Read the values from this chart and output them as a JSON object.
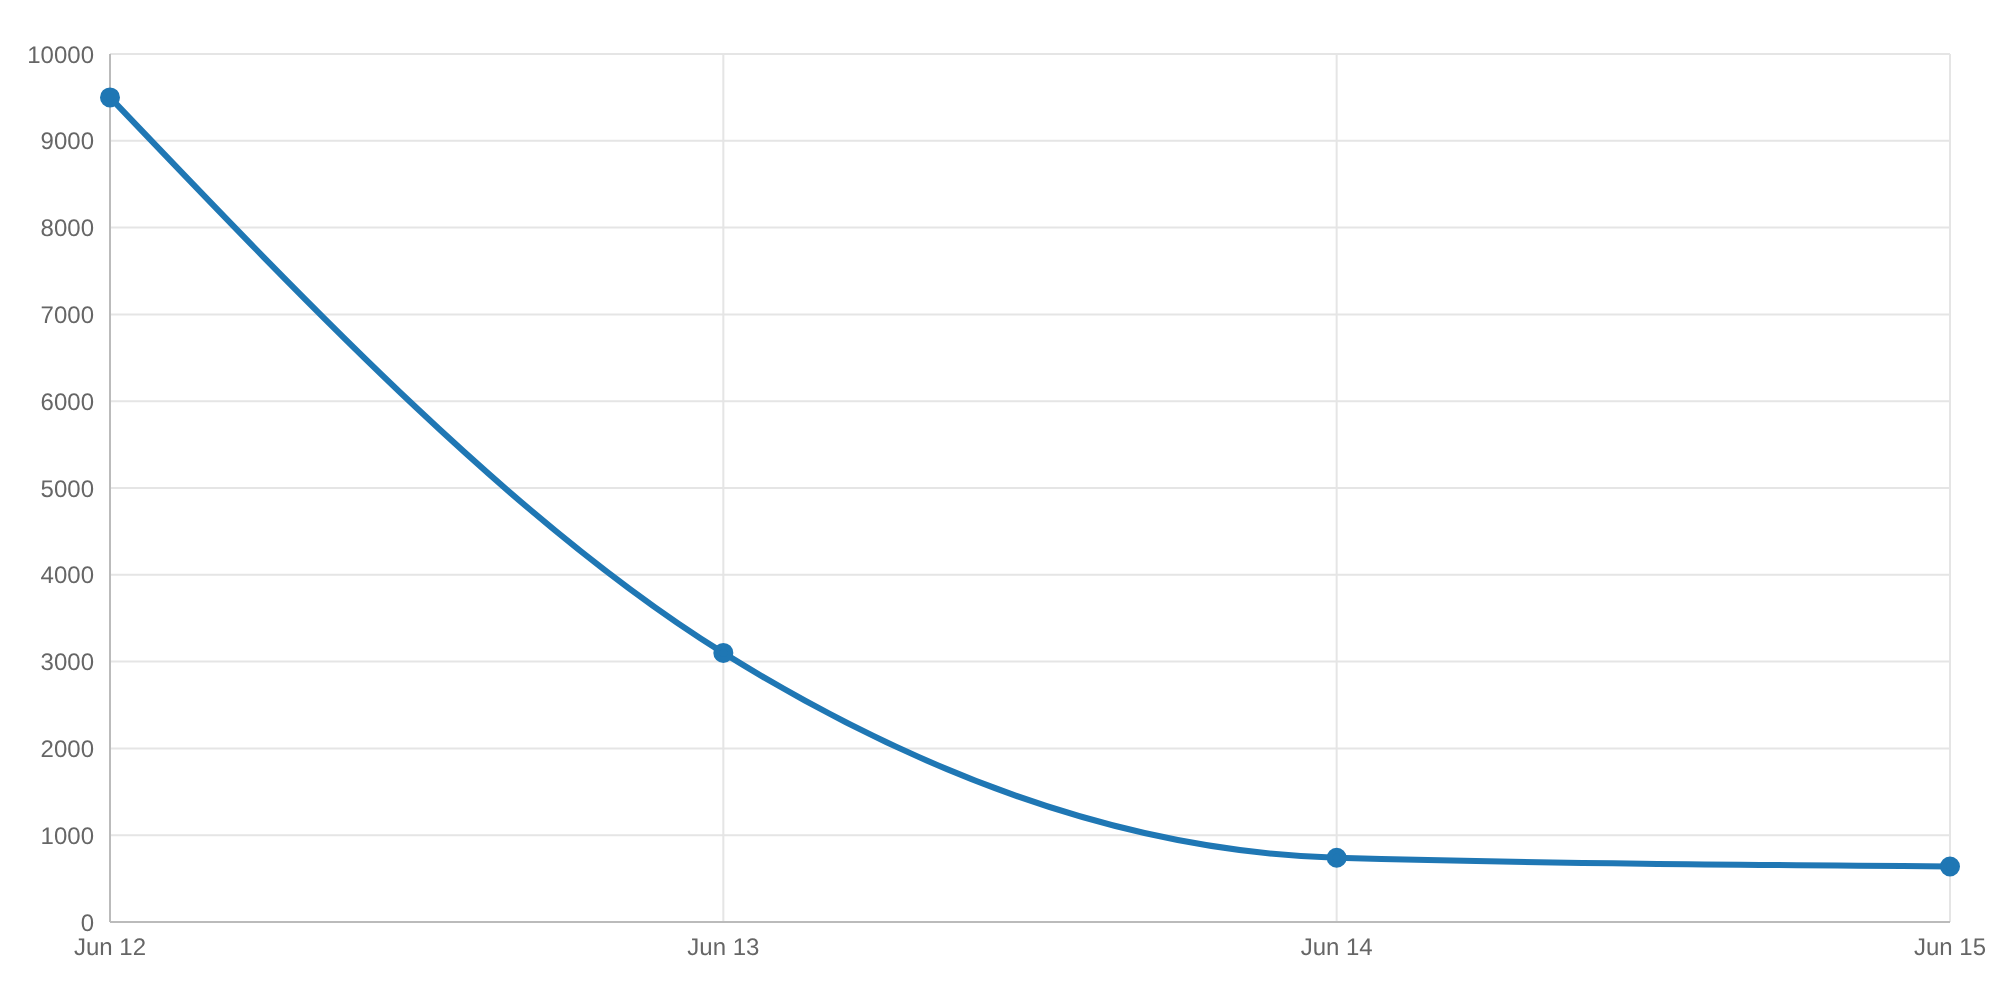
{
  "chart_data": {
    "type": "line",
    "categories": [
      "Jun 12",
      "Jun 13",
      "Jun 14",
      "Jun 15"
    ],
    "series": [
      {
        "color": "#1f77b4",
        "values": [
          9500,
          3100,
          740,
          640
        ]
      }
    ],
    "ylim": [
      0,
      10000
    ],
    "yticks": [
      0,
      1000,
      2000,
      3000,
      4000,
      5000,
      6000,
      7000,
      8000,
      9000,
      10000
    ],
    "grid": true,
    "marker": "circle",
    "line_style": "solid"
  }
}
